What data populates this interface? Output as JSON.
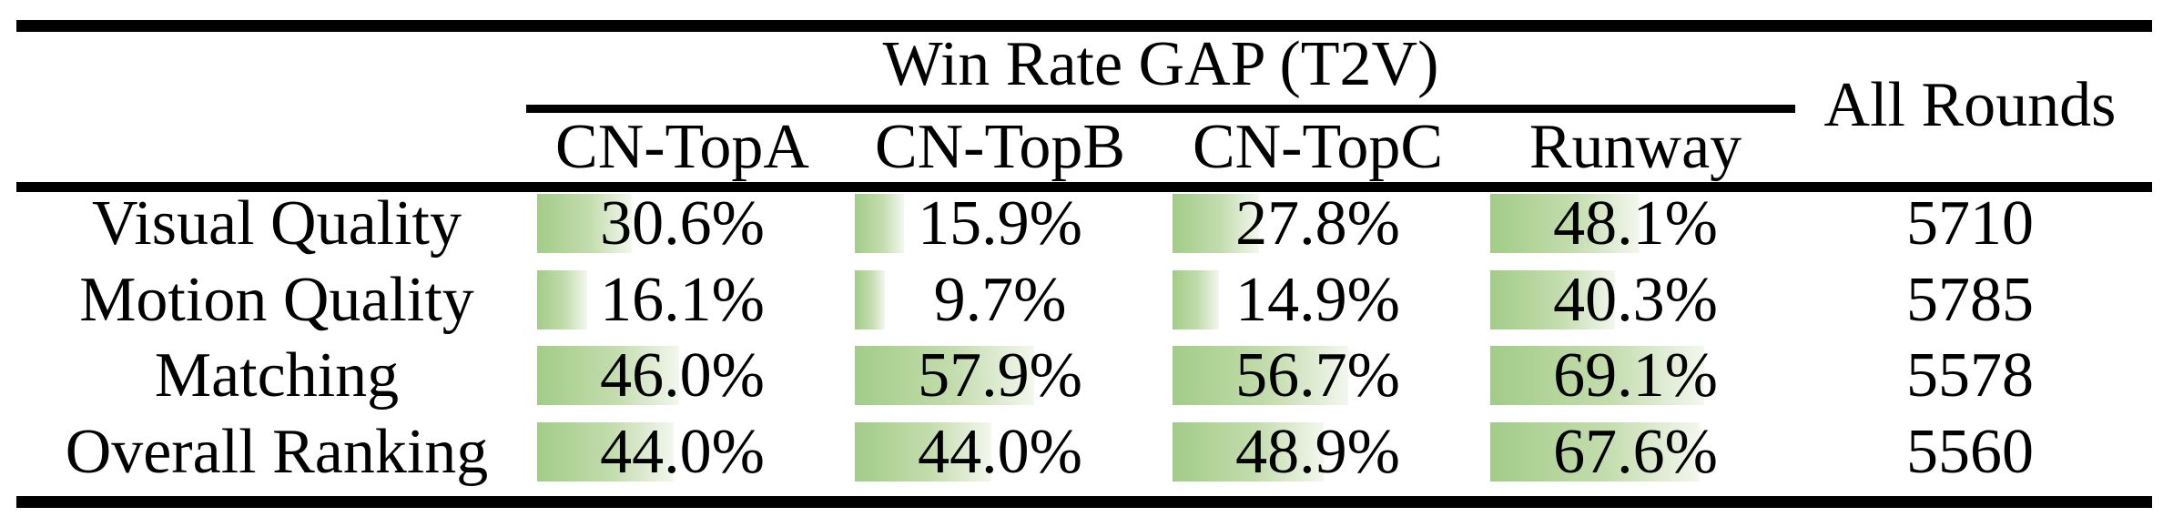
{
  "table": {
    "group_header": "Win Rate GAP (T2V)",
    "all_rounds_header": "All Rounds",
    "model_columns": [
      "CN-TopA",
      "CN-TopB",
      "CN-TopC",
      "Runway"
    ],
    "rows": [
      {
        "label": "Visual Quality",
        "gaps": [
          "30.6%",
          "15.9%",
          "27.8%",
          "48.1%"
        ],
        "all_rounds": "5710"
      },
      {
        "label": "Motion Quality",
        "gaps": [
          "16.1%",
          "9.7%",
          "14.9%",
          "40.3%"
        ],
        "all_rounds": "5785"
      },
      {
        "label": "Matching",
        "gaps": [
          "46.0%",
          "57.9%",
          "56.7%",
          "69.1%"
        ],
        "all_rounds": "5578"
      },
      {
        "label": "Overall Ranking",
        "gaps": [
          "44.0%",
          "44.0%",
          "48.9%",
          "67.6%"
        ],
        "all_rounds": "5560"
      }
    ]
  },
  "chart_data": {
    "type": "table",
    "title": "Win Rate GAP (T2V)",
    "categories": [
      "Visual Quality",
      "Motion Quality",
      "Matching",
      "Overall Ranking"
    ],
    "series": [
      {
        "name": "CN-TopA",
        "values": [
          30.6,
          16.1,
          46.0,
          44.0
        ]
      },
      {
        "name": "CN-TopB",
        "values": [
          15.9,
          9.7,
          57.9,
          44.0
        ]
      },
      {
        "name": "CN-TopC",
        "values": [
          27.8,
          14.9,
          56.7,
          48.9
        ]
      },
      {
        "name": "Runway",
        "values": [
          48.1,
          40.3,
          69.1,
          67.6
        ]
      },
      {
        "name": "All Rounds",
        "values": [
          5710,
          5785,
          5578,
          5560
        ]
      }
    ],
    "value_unit": "%",
    "bar_scale_max": 100
  },
  "colors": {
    "bar_gradient_start": "#a2cc88",
    "bar_gradient_mid": "#c3dcad",
    "bar_gradient_end": "#f3f7ee",
    "rule_color": "#000000",
    "text_color": "#000000",
    "background": "#ffffff"
  }
}
